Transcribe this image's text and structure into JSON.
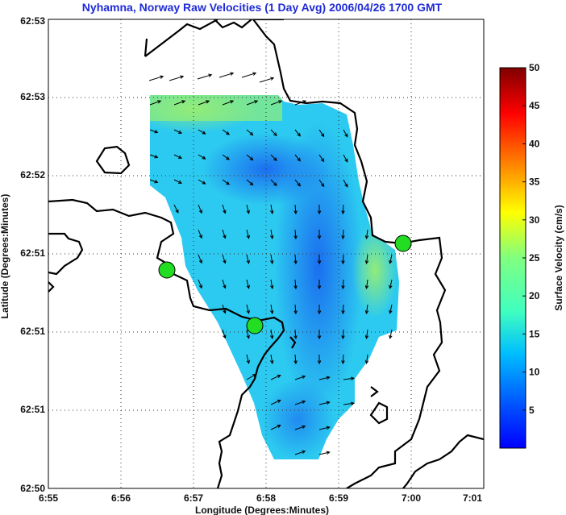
{
  "chart_data": {
    "type": "heatmap",
    "title": "Nyhamna, Norway Raw Velocities (1 Day Avg) 2006/04/26 1700 GMT",
    "xlabel": "Longitude (Degrees:Minutes)",
    "ylabel": "Latitude (Degrees:Minutes)",
    "x_ticks": [
      "6:55",
      "6:56",
      "6:57",
      "6:58",
      "6:59",
      "7:00",
      "7:01"
    ],
    "y_ticks": [
      "62:53",
      "62:53",
      "62:52",
      "62:51",
      "62:51",
      "62:51",
      "62:50"
    ],
    "grid": true,
    "colorbar": {
      "label": "Surface Velocity (cm/s)",
      "min": 0,
      "max": 50,
      "ticks": [
        5,
        10,
        15,
        20,
        25,
        30,
        35,
        40,
        45,
        50
      ],
      "colormap": "jet"
    },
    "station_color": "#22dd22",
    "coast_color": "#000000"
  }
}
